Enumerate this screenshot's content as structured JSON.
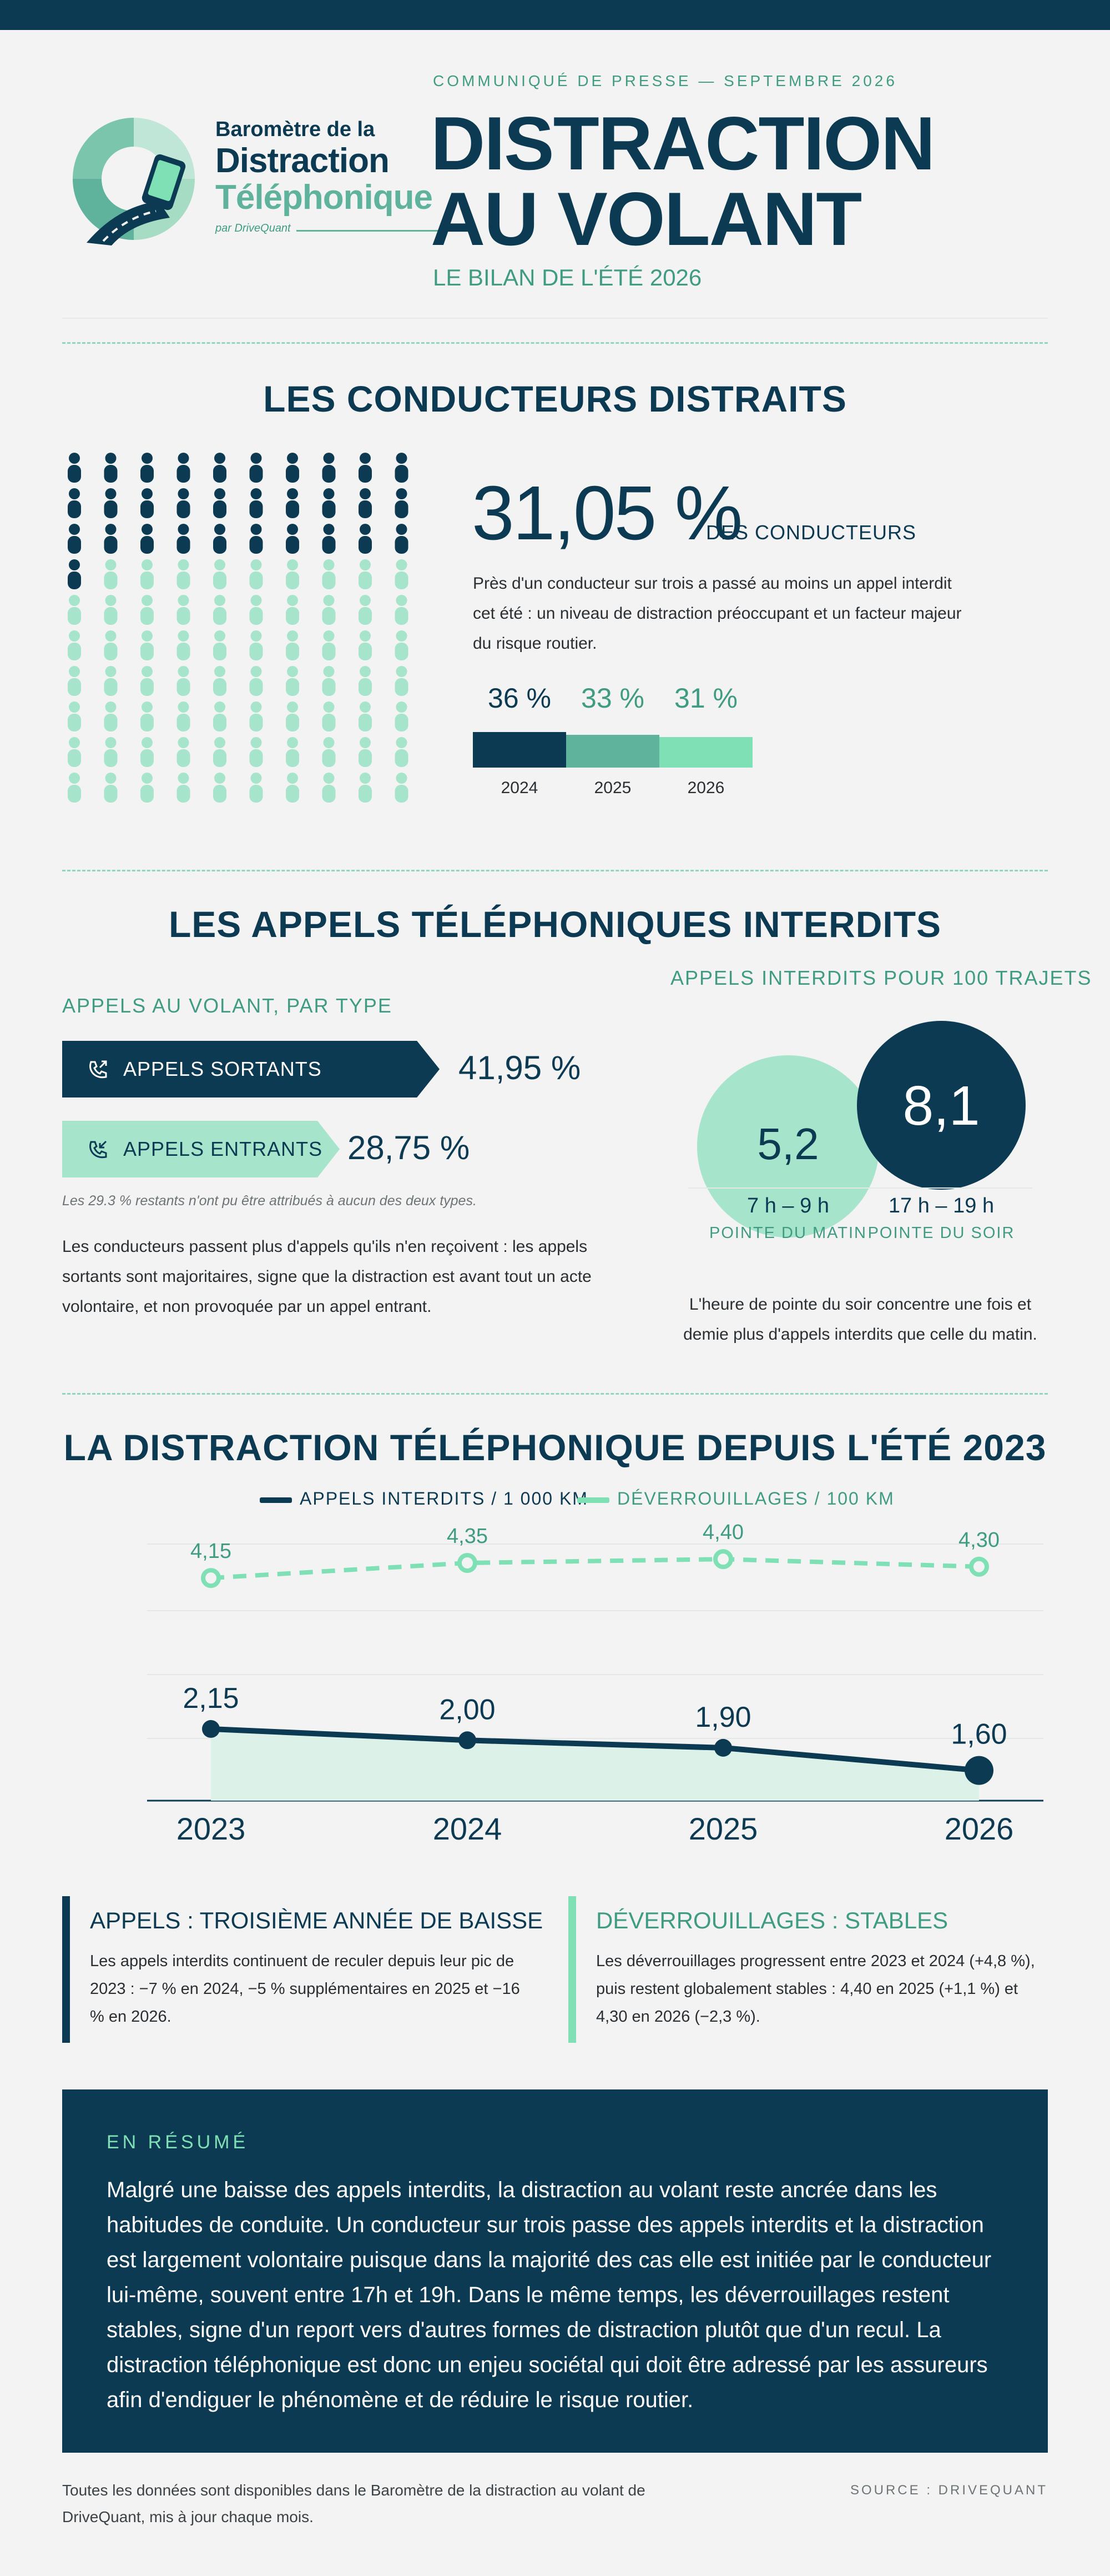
{
  "header": {
    "logo_line1": "Baromètre de la",
    "logo_line2": "Distraction",
    "logo_line3": "Téléphonique",
    "logo_by": "par DriveQuant",
    "kicker": "COMMUNIQUÉ DE PRESSE — SEPTEMBRE 2026",
    "title_line1": "DISTRACTION",
    "title_line2": "AU VOLANT",
    "subtitle": "LE BILAN DE L'ÉTÉ 2026"
  },
  "drivers": {
    "section_title": "LES CONDUCTEURS DISTRAITS",
    "big_value": "31,05 %",
    "big_unit": "DES CONDUCTEURS",
    "description": "Près d'un conducteur sur trois a passé au moins un appel interdit cet été : un niveau de distraction préoccupant et un facteur majeur du risque routier.",
    "pictogram_share": 0.31,
    "pictogram_total": 100
  },
  "calls": {
    "section_title": "LES APPELS TÉLÉPHONIQUES INTERDITS",
    "type_heading": "APPELS AU VOLANT, PAR TYPE",
    "outgoing_label": "APPELS SORTANTS",
    "outgoing_value": "41,95 %",
    "incoming_label": "APPELS ENTRANTS",
    "incoming_value": "28,75 %",
    "footnote": "Les 29.3 % restants n'ont pu être attribués à aucun des deux types.",
    "description": "Les conducteurs passent plus d'appels qu'ils n'en reçoivent : les appels sortants sont majoritaires, signe que la distraction est avant tout un acte volontaire, et non provoquée par un appel entrant.",
    "peak_heading": "APPELS INTERDITS POUR 100 TRAJETS",
    "morning_value": "5,2",
    "morning_hours": "7 h – 9 h",
    "morning_label": "POINTE DU MATIN",
    "evening_value": "8,1",
    "evening_hours": "17 h – 19 h",
    "evening_label": "POINTE DU SOIR",
    "peak_description": "L'heure de pointe du soir concentre une fois et demie plus d'appels interdits que celle du matin."
  },
  "trend": {
    "section_title": "LA DISTRACTION TÉLÉPHONIQUE DEPUIS L'ÉTÉ 2023",
    "card1_title": "APPELS : TROISIÈME ANNÉE DE BAISSE",
    "card1_text": "Les appels interdits continuent de reculer depuis leur pic de 2023 : −7 % en 2024, −5 % supplémentaires en 2025 et −16 % en 2026.",
    "card2_title": "DÉVERROUILLAGES : STABLES",
    "card2_text": "Les déverrouillages progressent entre 2023 et 2024 (+4,8 %), puis restent globalement stables : 4,40 en 2025 (+1,1 %) et 4,30 en 2026 (−2,3 %)."
  },
  "summary": {
    "heading": "EN RÉSUMÉ",
    "text": "Malgré une baisse des appels interdits, la distraction au volant reste ancrée dans les habitudes de conduite. Un conducteur sur trois passe des appels interdits et la distraction est largement volontaire puisque dans la majorité des cas elle est initiée par le conducteur lui-même, souvent entre 17h et 19h. Dans le même temps, les déverrouillages restent stables, signe d'un report vers d'autres formes de distraction plutôt que d'un recul. La distraction téléphonique est donc un enjeu sociétal qui doit être adressé par les assureurs afin d'endiguer le phénomène et de réduire le risque routier."
  },
  "footer": {
    "note": "Toutes les données sont disponibles dans le Baromètre de la distraction au volant de DriveQuant, mis à jour chaque mois.",
    "source": "SOURCE : DRIVEQUANT"
  },
  "colors": {
    "navy": "#0c3a52",
    "teal": "#5fb39c",
    "mint": "#7fe0b6",
    "mint_light": "#a6e4cb",
    "green_text": "#3f9c82"
  },
  "chart_data": [
    {
      "type": "bar",
      "categories": [
        "2024",
        "2025",
        "2026"
      ],
      "values": [
        36,
        33,
        31
      ],
      "value_labels": [
        "36 %",
        "33 %",
        "31 %"
      ]
    },
    {
      "type": "line",
      "x": [
        "2023",
        "2024",
        "2025",
        "2026"
      ],
      "series": [
        {
          "name": "APPELS INTERDITS / 1 000 KM",
          "values": [
            2.15,
            2.0,
            1.9,
            1.6
          ],
          "labels": [
            "2,15",
            "2,00",
            "1,90",
            "1,60"
          ],
          "color": "#0c3a52",
          "style": "solid-area"
        },
        {
          "name": "DÉVERROUILLAGES / 100 KM",
          "values": [
            4.15,
            4.35,
            4.4,
            4.3
          ],
          "labels": [
            "4,15",
            "4,35",
            "4,40",
            "4,30"
          ],
          "color": "#7fe0b6",
          "style": "dashed"
        }
      ],
      "ylim": [
        1.2,
        4.6
      ],
      "legend": "top-center",
      "grid": true
    }
  ]
}
